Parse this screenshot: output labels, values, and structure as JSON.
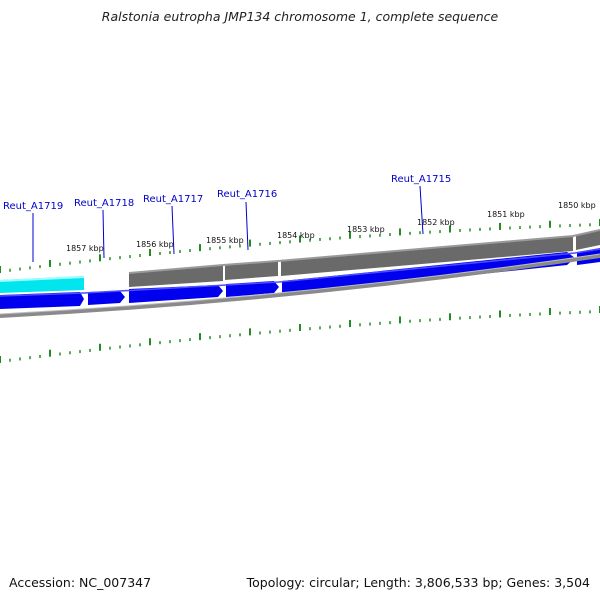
{
  "title": "Ralstonia eutropha JMP134 chromosome 1, complete sequence",
  "accession": "Accession: NC_007347",
  "topology": "Topology: circular; Length: 3,806,533 bp; Genes: 3,504",
  "colors": {
    "forward_gene": "#0000ee",
    "highlight_gene": "#00e5ee",
    "gray_feature": "#6a6a6a",
    "backbone": "#8a8a8a",
    "tick": "#228b22",
    "label": "#0000cc"
  },
  "scale_labels": [
    "1857 kbp",
    "1856 kbp",
    "1855 kbp",
    "1854 kbp",
    "1853 kbp",
    "1852 kbp",
    "1851 kbp",
    "1850 kbp"
  ],
  "gene_labels": [
    "Reut_A1719",
    "Reut_A1718",
    "Reut_A1717",
    "Reut_A1716",
    "Reut_A1715"
  ]
}
